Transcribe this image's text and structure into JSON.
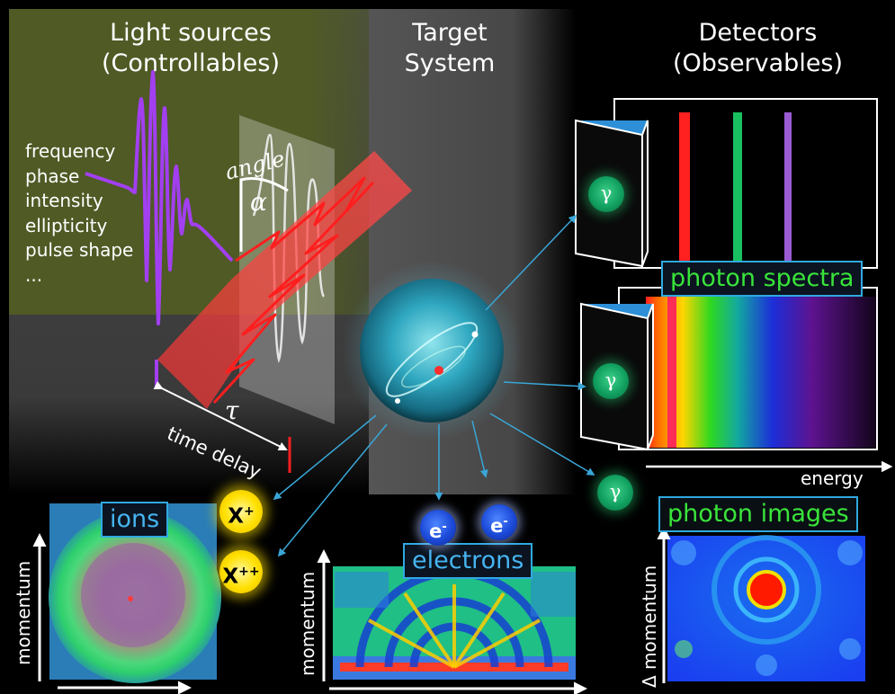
{
  "headers": {
    "light_sources": {
      "line1": "Light sources",
      "line2": "(Controllables)"
    },
    "target": {
      "line1": "Target",
      "line2": "System"
    },
    "detectors": {
      "line1": "Detectors",
      "line2": "(Observables)"
    }
  },
  "controllables": [
    "frequency",
    "phase",
    "intensity",
    "ellipticity",
    "pulse shape",
    "..."
  ],
  "annotations": {
    "angle": "angle",
    "alpha": "α",
    "tau": "τ",
    "time_delay": "time delay",
    "energy": "energy",
    "gamma": "γ",
    "electron": "e",
    "electron_charge": "-",
    "ion_single": "X",
    "ion_single_charge": "+",
    "ion_double": "X",
    "ion_double_charge": "++"
  },
  "panels": {
    "photon_spectra": "photon spectra",
    "photon_images": "photon images",
    "ions": "ions",
    "electrons": "electrons"
  },
  "axes": {
    "ions_y": "momentum",
    "electrons_y": "momentum",
    "images_y": "Δ momentum"
  },
  "colors": {
    "green_label": "#39e43a",
    "blue_label": "#46b4f0",
    "light_sources_bg": "#4f5a25",
    "target_bg": "#555555",
    "pulse_violet": "#a23ff0",
    "pulse_red": "#ff1e1e",
    "arrow_blue": "#3aa6d8"
  },
  "icons": [
    "prism-icon",
    "gamma-photon-icon",
    "electron-icon",
    "ion-icon",
    "atom-sphere-icon"
  ]
}
